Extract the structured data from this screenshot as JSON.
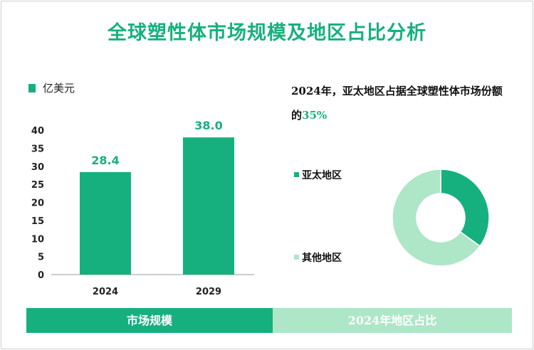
{
  "title": "全球塑性体市场规模及地区占比分析",
  "colors": {
    "accent": "#16b07e",
    "light": "#aee6c8"
  },
  "chart_data": [
    {
      "type": "bar",
      "ylabel": "亿美元",
      "categories": [
        "2024",
        "2029"
      ],
      "values": [
        28.4,
        38.0
      ],
      "data_labels": [
        "28.4",
        "38.0"
      ],
      "ylim": [
        0,
        40
      ],
      "yticks": [
        "0",
        "5",
        "10",
        "15",
        "20",
        "25",
        "30",
        "35",
        "40"
      ],
      "grid": false
    },
    {
      "type": "pie",
      "title_prefix": "2024年，亚太地区占据全球塑性体市场份额的",
      "highlight": "35%",
      "labels": [
        "亚太地区",
        "其他地区"
      ],
      "values": [
        35,
        65
      ],
      "colors": [
        "#16b07e",
        "#aee6c8"
      ],
      "donut": true
    }
  ],
  "footer": {
    "left": "市场规模",
    "right": "2024年地区占比"
  }
}
